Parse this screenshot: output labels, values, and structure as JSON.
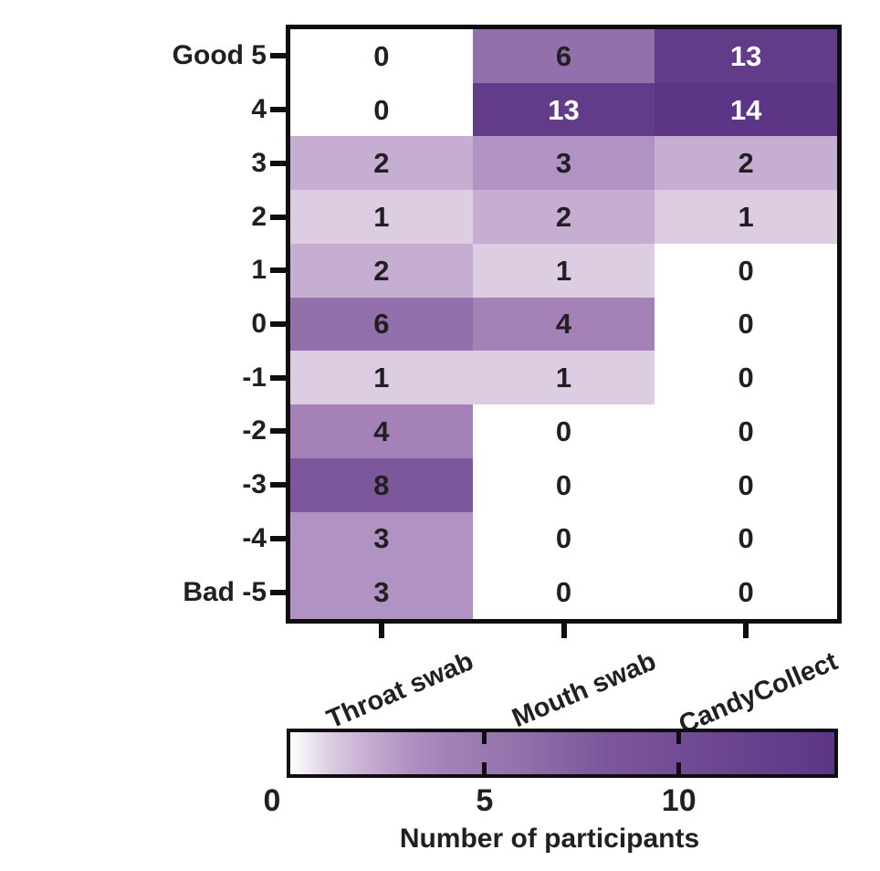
{
  "chart_data": {
    "type": "heatmap",
    "title": "",
    "columns": [
      "Throat swab",
      "Mouth swab",
      "CandyCollect"
    ],
    "row_labels": [
      "Good 5",
      "4",
      "3",
      "2",
      "1",
      "0",
      "-1",
      "-2",
      "-3",
      "-4",
      "Bad -5"
    ],
    "values": [
      [
        0,
        6,
        13
      ],
      [
        0,
        13,
        14
      ],
      [
        2,
        3,
        2
      ],
      [
        1,
        2,
        1
      ],
      [
        2,
        1,
        0
      ],
      [
        6,
        4,
        0
      ],
      [
        1,
        1,
        0
      ],
      [
        4,
        0,
        0
      ],
      [
        8,
        0,
        0
      ],
      [
        3,
        0,
        0
      ],
      [
        3,
        0,
        0
      ]
    ],
    "value_min": 0,
    "value_max": 14,
    "colormap": [
      "#ffffff",
      "#dccde2",
      "#c6aed3",
      "#b092c3",
      "#a482b8",
      "#9a79b1",
      "#9170ab",
      "#8764a4",
      "#7d579c",
      "#785198",
      "#724c94",
      "#6d4690",
      "#67408d",
      "#623b89",
      "#5d3587"
    ],
    "white_text_threshold": 13,
    "axis_color": "#0f0d10",
    "text_color": "#221f23",
    "cell_text_color_high": "#ffffff",
    "legend_position": "bottom",
    "grid": false,
    "colorbar": {
      "label": "Number of participants",
      "tick_labels": [
        "0",
        "5",
        "10"
      ],
      "tick_values": [
        0,
        5,
        10
      ]
    }
  }
}
